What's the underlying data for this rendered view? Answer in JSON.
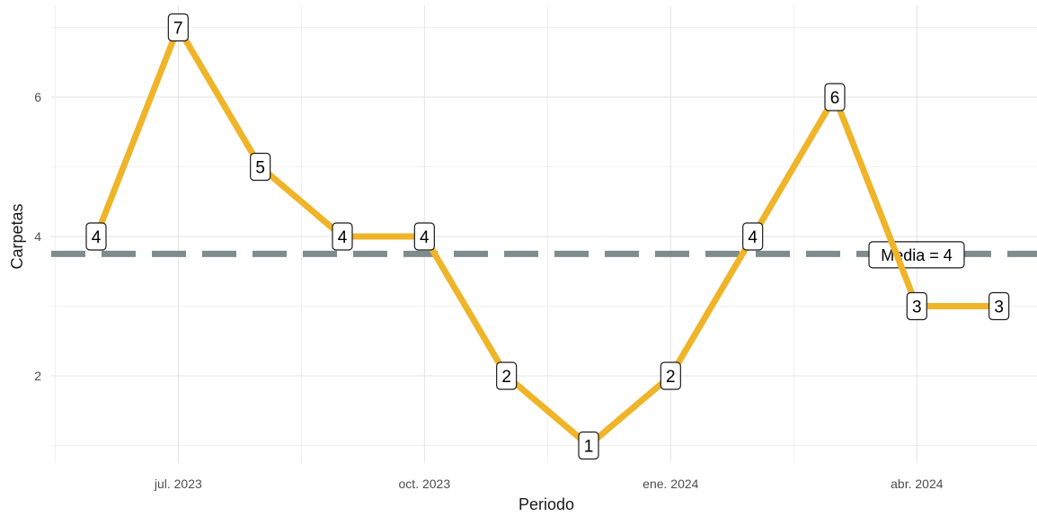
{
  "chart_data": {
    "type": "line",
    "xlabel": "Periodo",
    "ylabel": "Carpetas",
    "x": [
      "2023-06",
      "2023-07",
      "2023-08",
      "2023-09",
      "2023-10",
      "2023-11",
      "2023-12",
      "2024-01",
      "2024-02",
      "2024-03",
      "2024-04",
      "2024-05"
    ],
    "xticks": [
      {
        "value": "2023-07",
        "label": "jul. 2023"
      },
      {
        "value": "2023-10",
        "label": "oct. 2023"
      },
      {
        "value": "2024-01",
        "label": "ene. 2024"
      },
      {
        "value": "2024-04",
        "label": "abr. 2024"
      }
    ],
    "yticks": [
      2,
      4,
      6
    ],
    "ylim": [
      0.8,
      7.3
    ],
    "series": [
      {
        "values": [
          4,
          7,
          5,
          4,
          4,
          2,
          1,
          2,
          4,
          6,
          3,
          3
        ],
        "color": "#F0B429"
      }
    ],
    "reference_line": {
      "value": 3.75,
      "label": "Media = 4",
      "color": "#7F8C8D",
      "style": "dashed"
    },
    "grid": true,
    "legend": "none"
  }
}
